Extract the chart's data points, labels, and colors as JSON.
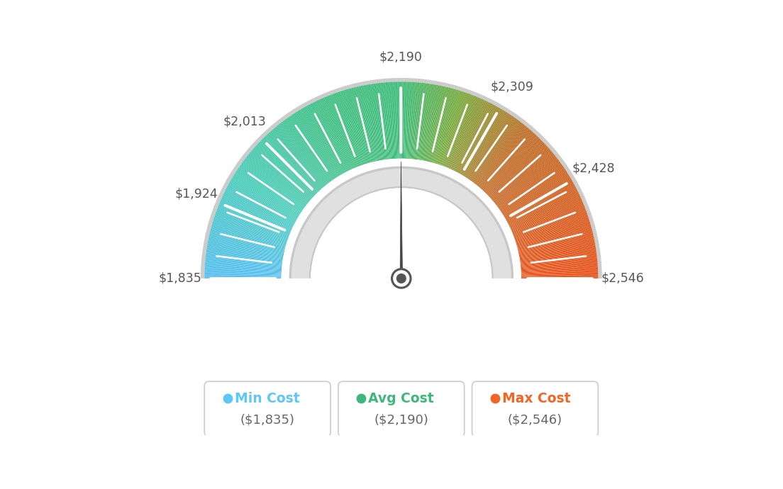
{
  "min_value": 1835,
  "max_value": 2546,
  "avg_value": 2190,
  "tick_labels": [
    "$1,835",
    "$1,924",
    "$2,013",
    "$2,190",
    "$2,309",
    "$2,428",
    "$2,546"
  ],
  "tick_values": [
    1835,
    1924,
    2013,
    2190,
    2309,
    2428,
    2546
  ],
  "legend_labels": [
    "Min Cost",
    "Avg Cost",
    "Max Cost"
  ],
  "legend_values": [
    "($1,835)",
    "($2,190)",
    "($2,546)"
  ],
  "legend_colors": [
    "#5bc8f5",
    "#3db87a",
    "#f26522"
  ],
  "background_color": "#ffffff",
  "needle_color": "#555555",
  "gauge_gradient": [
    [
      0.0,
      "#5ab4f0"
    ],
    [
      0.2,
      "#4ec9b0"
    ],
    [
      0.42,
      "#3dbb7a"
    ],
    [
      0.5,
      "#3dbb7a"
    ],
    [
      0.58,
      "#8fbb5a"
    ],
    [
      0.7,
      "#c8842a"
    ],
    [
      1.0,
      "#e8521a"
    ]
  ]
}
